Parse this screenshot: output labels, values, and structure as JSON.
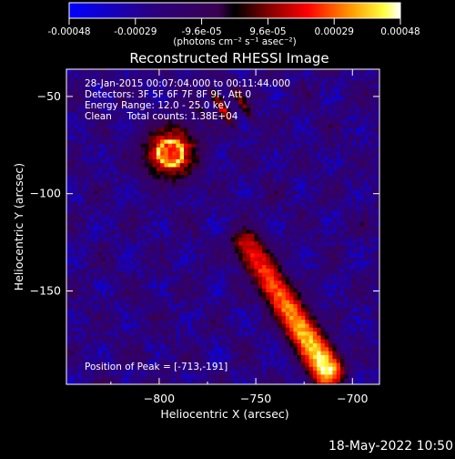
{
  "colorbar": {
    "tick_labels": [
      "-0.00048",
      "-0.00029",
      "-9.6e-05",
      "9.6e-05",
      "0.00029",
      "0.00048"
    ],
    "units": "(photons cm⁻² s⁻¹ asec⁻²)"
  },
  "chart_data": {
    "type": "heatmap",
    "title": "Reconstructed RHESSI Image",
    "xlabel": "Heliocentric X (arcsec)",
    "ylabel": "Heliocentric Y (arcsec)",
    "xlim": [
      -848,
      -686
    ],
    "ylim": [
      -198,
      -36
    ],
    "x_ticks": [
      -800,
      -750,
      -700
    ],
    "y_ticks": [
      -50,
      -100,
      -150
    ],
    "colormap": "rhessi-flux (blue-purple-red-yellow-white)",
    "value_range": [
      -0.00048,
      0.00048
    ],
    "features": [
      {
        "name": "north-west source",
        "x": -794,
        "y": -79
      },
      {
        "name": "north arc",
        "x": -765,
        "y": -55
      },
      {
        "name": "diagonal ribbon",
        "x_start": -755,
        "y_start": -125,
        "x_end": -713,
        "y_end": -191
      },
      {
        "name": "peak",
        "x": -713,
        "y": -191
      }
    ],
    "annotations": {
      "time_range": "28-Jan-2015 00:07:04.000 to 00:11:44.000",
      "detectors": "Detectors: 3F 5F 6F 7F 8F 9F, Att 0",
      "energy": "Energy Range: 12.0 - 25.0 keV",
      "algorithm": "Clean     Total counts: 1.38E+04",
      "peak": "Position of Peak = [-713,-191]"
    }
  },
  "footer": {
    "timestamp": "18-May-2022 10:50"
  }
}
